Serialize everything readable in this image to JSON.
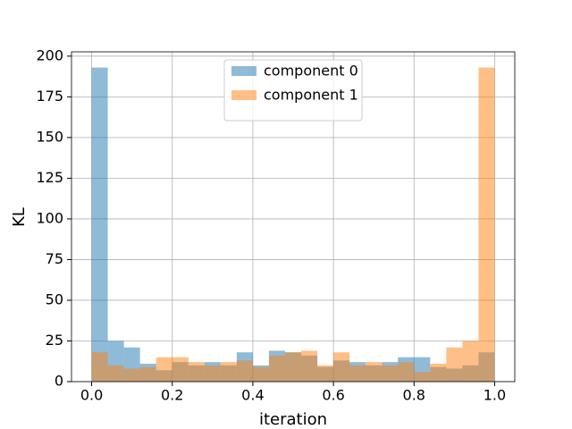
{
  "chart_data": {
    "type": "histogram",
    "xlabel": "iteration",
    "ylabel": "KL",
    "bins": [
      0,
      0.04,
      0.08,
      0.12,
      0.16,
      0.2,
      0.24,
      0.28,
      0.32,
      0.36,
      0.4,
      0.44,
      0.48,
      0.52,
      0.56,
      0.6,
      0.64,
      0.68,
      0.72,
      0.76,
      0.8,
      0.84,
      0.88,
      0.92,
      0.96,
      1
    ],
    "series": [
      {
        "name": "component 0",
        "color": "#1f77b4",
        "values": [
          193,
          25,
          21,
          11,
          7,
          12,
          10,
          12,
          10,
          18,
          10,
          19,
          18,
          16,
          9,
          13,
          12,
          10,
          12,
          15,
          15,
          9,
          8,
          10,
          18
        ]
      },
      {
        "name": "component 1",
        "color": "#ff7f0e",
        "values": [
          18,
          10,
          8,
          9,
          15,
          15,
          12,
          10,
          12,
          13,
          9,
          16,
          18,
          19,
          10,
          18,
          10,
          12,
          10,
          12,
          6,
          11,
          21,
          25,
          193
        ]
      }
    ],
    "alpha": 0.5,
    "xlim": [
      -0.05,
      1.05
    ],
    "xticks": [
      {
        "value": 0,
        "label": "0.0"
      },
      0.2,
      0.4,
      0.6,
      0.8,
      {
        "value": 1,
        "label": "1.0"
      }
    ],
    "ylim": [
      0,
      202.65
    ],
    "yticks": [
      0,
      25,
      50,
      75,
      100,
      125,
      150,
      175,
      200
    ],
    "grid": true,
    "legend": "upper center"
  }
}
